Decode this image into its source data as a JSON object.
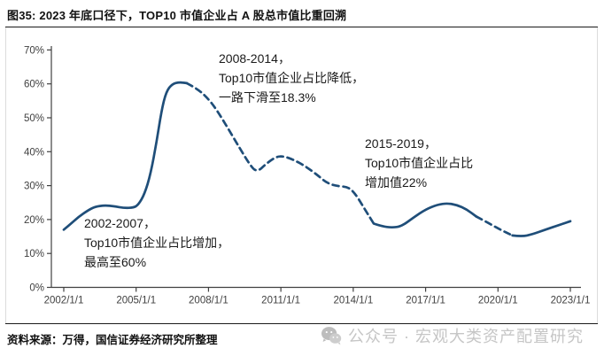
{
  "header": {
    "title": "图35: 2023 年底口径下，TOP10 市值企业占 A 股总市值比重回溯"
  },
  "footer": {
    "source": "资料来源：万得，国信证券经济研究所整理",
    "watermark": "公众号 · 宏观大类资产配置研究",
    "watermark_icon": "wechat-icon"
  },
  "chart_data": {
    "type": "line",
    "title": "2023 年底口径下，TOP10 市值企业占 A 股总市值比重回溯",
    "xlabel": "",
    "ylabel": "",
    "grid": false,
    "legend_position": "none",
    "line_color": "#1F4E79",
    "axis_color": "#404040",
    "tick_label_color": "#404040",
    "xlim": [
      2002,
      2023
    ],
    "ylim": [
      0,
      70
    ],
    "x_tick_years": [
      2002,
      2005,
      2008,
      2011,
      2014,
      2017,
      2020,
      2023
    ],
    "x_tick_labels": [
      "2002/1/1",
      "2005/1/1",
      "2008/1/1",
      "2011/1/1",
      "2014/1/1",
      "2017/1/1",
      "2020/1/1",
      "2023/1/1"
    ],
    "y_ticks": [
      0,
      10,
      20,
      30,
      40,
      50,
      60,
      70
    ],
    "y_tick_labels": [
      "0%",
      "10%",
      "20%",
      "30%",
      "40%",
      "50%",
      "60%",
      "70%"
    ],
    "series": [
      {
        "name": "Top10市值企业占A股总市值比重",
        "unit": "%",
        "segments": [
          {
            "style": "solid",
            "points": [
              [
                2002.0,
                17.0
              ],
              [
                2002.3,
                18.8
              ],
              [
                2002.6,
                20.7
              ],
              [
                2003.0,
                22.7
              ],
              [
                2003.3,
                23.8
              ],
              [
                2003.7,
                24.2
              ],
              [
                2004.1,
                23.9
              ],
              [
                2004.5,
                23.4
              ],
              [
                2004.9,
                23.5
              ],
              [
                2005.1,
                24.4
              ],
              [
                2005.35,
                27.5
              ],
              [
                2005.6,
                33.5
              ],
              [
                2005.85,
                43.0
              ],
              [
                2006.05,
                52.0
              ],
              [
                2006.25,
                57.8
              ],
              [
                2006.5,
                60.0
              ],
              [
                2006.8,
                60.5
              ],
              [
                2007.1,
                60.2
              ]
            ]
          },
          {
            "style": "dashed",
            "points": [
              [
                2007.1,
                60.2
              ],
              [
                2007.5,
                58.7
              ],
              [
                2007.9,
                56.3
              ],
              [
                2008.3,
                52.8
              ],
              [
                2008.8,
                47.0
              ],
              [
                2009.3,
                41.0
              ],
              [
                2009.7,
                36.3
              ],
              [
                2010.0,
                33.9
              ],
              [
                2010.4,
                36.5
              ],
              [
                2010.8,
                38.5
              ],
              [
                2011.1,
                38.7
              ],
              [
                2011.5,
                37.7
              ],
              [
                2012.0,
                35.8
              ],
              [
                2012.5,
                33.2
              ],
              [
                2012.9,
                30.8
              ],
              [
                2013.3,
                29.9
              ],
              [
                2013.8,
                29.6
              ],
              [
                2014.1,
                27.5
              ],
              [
                2014.5,
                22.8
              ],
              [
                2014.85,
                18.8
              ]
            ]
          },
          {
            "style": "solid",
            "points": [
              [
                2014.85,
                18.8
              ],
              [
                2015.2,
                18.0
              ],
              [
                2015.6,
                17.6
              ],
              [
                2016.0,
                18.0
              ],
              [
                2016.5,
                20.6
              ],
              [
                2017.0,
                23.0
              ],
              [
                2017.5,
                24.4
              ],
              [
                2017.9,
                24.8
              ],
              [
                2018.3,
                24.3
              ],
              [
                2018.7,
                23.0
              ],
              [
                2019.1,
                20.9
              ]
            ]
          },
          {
            "style": "dashed",
            "points": [
              [
                2019.1,
                20.9
              ],
              [
                2019.6,
                19.0
              ],
              [
                2020.1,
                17.0
              ],
              [
                2020.6,
                15.3
              ]
            ]
          },
          {
            "style": "solid",
            "points": [
              [
                2020.6,
                15.3
              ],
              [
                2021.0,
                15.0
              ],
              [
                2021.4,
                15.6
              ],
              [
                2022.0,
                17.1
              ],
              [
                2022.5,
                18.3
              ],
              [
                2023.0,
                19.5
              ]
            ]
          }
        ]
      }
    ],
    "annotations": [
      {
        "id": "ann-2002-2007",
        "text": "2002-2007，\nTop10市值企业占比增加，\n最高至60%"
      },
      {
        "id": "ann-2008-2014",
        "text": "2008-2014，\nTop10市值企业占比降低，\n一路下滑至18.3%"
      },
      {
        "id": "ann-2015-2019",
        "text": "2015-2019，\nTop10市值企业占比\n增加值22%"
      }
    ]
  }
}
